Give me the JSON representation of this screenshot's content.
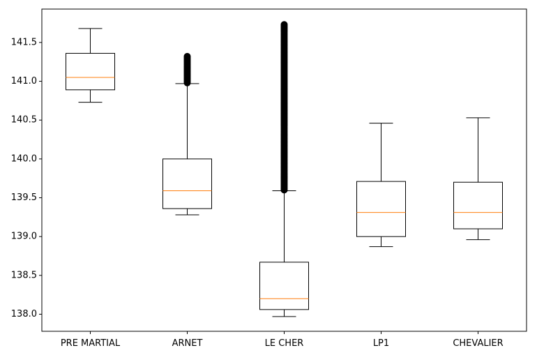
{
  "chart_data": {
    "type": "box",
    "title": "",
    "xlabel": "",
    "ylabel": "",
    "ylim": [
      137.78,
      141.93
    ],
    "yticks": [
      138.0,
      138.5,
      139.0,
      139.5,
      140.0,
      140.5,
      141.0,
      141.5
    ],
    "ytick_labels": [
      "138.0",
      "138.5",
      "139.0",
      "139.5",
      "140.0",
      "140.5",
      "141.0",
      "141.5"
    ],
    "grid": false,
    "colors": {
      "box": "#000000",
      "median": "#ff7f0e",
      "flier": "#000000"
    },
    "categories": [
      "PRE MARTIAL",
      "ARNET",
      "LE CHER",
      "LP1",
      "CHEVALIER"
    ],
    "boxes": [
      {
        "label": "PRE MARTIAL",
        "whisker_low": 140.73,
        "q1": 140.89,
        "median": 141.05,
        "q3": 141.36,
        "whisker_high": 141.68,
        "outliers_range": null
      },
      {
        "label": "ARNET",
        "whisker_low": 139.28,
        "q1": 139.36,
        "median": 139.59,
        "q3": 140.0,
        "whisker_high": 140.97,
        "outliers_range": [
          140.98,
          141.32
        ]
      },
      {
        "label": "LE CHER",
        "whisker_low": 137.97,
        "q1": 138.06,
        "median": 138.2,
        "q3": 138.67,
        "whisker_high": 139.59,
        "outliers_range": [
          139.6,
          141.73
        ]
      },
      {
        "label": "LP1",
        "whisker_low": 138.87,
        "q1": 139.0,
        "median": 139.31,
        "q3": 139.71,
        "whisker_high": 140.46,
        "outliers_range": null
      },
      {
        "label": "CHEVALIER",
        "whisker_low": 138.96,
        "q1": 139.1,
        "median": 139.31,
        "q3": 139.7,
        "whisker_high": 140.53,
        "outliers_range": null
      }
    ]
  }
}
